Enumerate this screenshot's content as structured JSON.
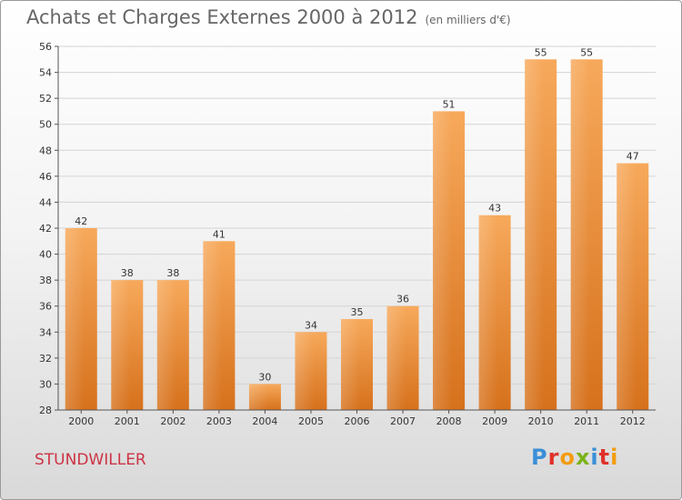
{
  "header": {
    "title": "Achats et Charges Externes 2000 à 2012",
    "subtitle": "(en milliers d'€)"
  },
  "footer": {
    "commune": "STUNDWILLER",
    "logo": "Proxiti"
  },
  "colors": {
    "bar_light": "#f5a455",
    "bar_dark": "#d9741f",
    "axis": "#555555",
    "grid": "#d8d8d8"
  },
  "chart_data": {
    "type": "bar",
    "categories": [
      "2000",
      "2001",
      "2002",
      "2003",
      "2004",
      "2005",
      "2006",
      "2007",
      "2008",
      "2009",
      "2010",
      "2011",
      "2012"
    ],
    "values": [
      42,
      38,
      38,
      41,
      30,
      34,
      35,
      36,
      51,
      43,
      55,
      55,
      47
    ],
    "ylim": [
      28,
      56
    ],
    "yticks": [
      28,
      30,
      32,
      34,
      36,
      38,
      40,
      42,
      44,
      46,
      48,
      50,
      52,
      54,
      56
    ],
    "grid": true,
    "data_labels": true
  }
}
